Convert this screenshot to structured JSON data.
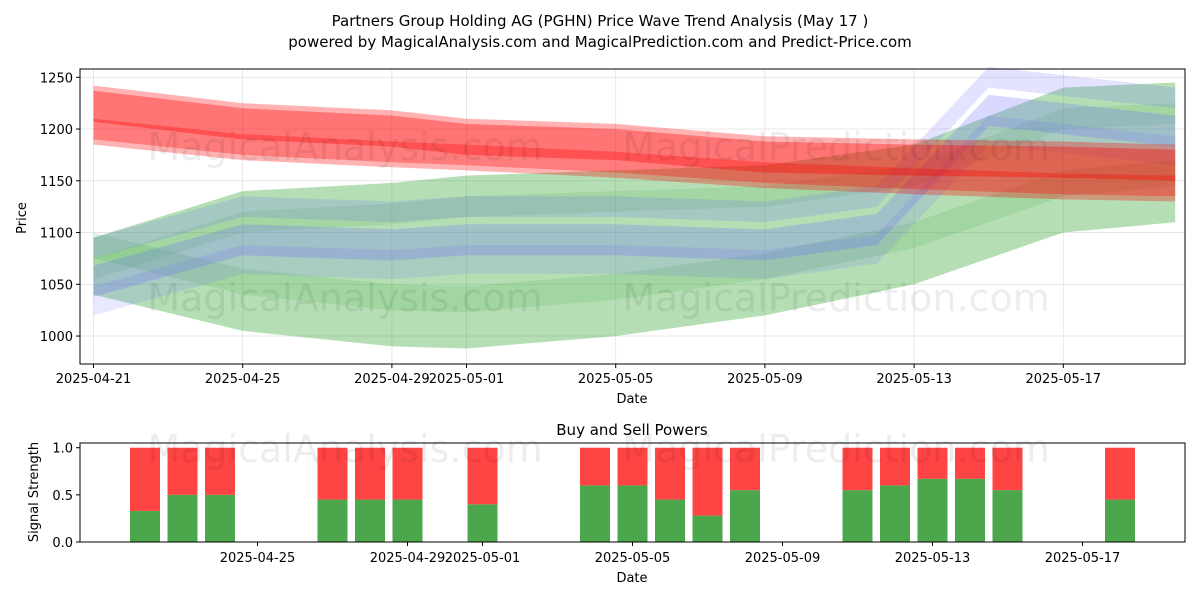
{
  "title_line1": "Partners Group Holding AG (PGHN) Price Wave Trend Analysis (May 17 )",
  "title_line2": "powered by MagicalAnalysis.com and MagicalPrediction.com and Predict-Price.com",
  "watermarks": [
    "MagicalAnalysis.com",
    "MagicalPrediction.com"
  ],
  "colors": {
    "red_band": "#ff0000",
    "green_band": "#2ca02c",
    "blue_band": "#6666ff",
    "buy": "#4ca64c",
    "sell": "#ff4444"
  },
  "chart_data": [
    {
      "type": "area",
      "title": "",
      "xlabel": "Date",
      "ylabel": "Price",
      "x_ticks": [
        "2025-04-21",
        "2025-04-25",
        "2025-04-29",
        "2025-05-01",
        "2025-05-05",
        "2025-05-09",
        "2025-05-13",
        "2025-05-17"
      ],
      "y_ticks": [
        1000,
        1050,
        1100,
        1150,
        1200,
        1250
      ],
      "xlim": [
        "2025-04-21",
        "2025-05-20"
      ],
      "ylim": [
        973,
        1258
      ],
      "grid": true,
      "series": [
        {
          "name": "red band upper",
          "color": "red",
          "points": [
            [
              "2025-04-21",
              1242
            ],
            [
              "2025-04-25",
              1225
            ],
            [
              "2025-04-29",
              1218
            ],
            [
              "2025-05-01",
              1210
            ],
            [
              "2025-05-05",
              1205
            ],
            [
              "2025-05-09",
              1193
            ],
            [
              "2025-05-13",
              1190
            ],
            [
              "2025-05-17",
              1188
            ],
            [
              "2025-05-20",
              1185
            ]
          ]
        },
        {
          "name": "red band lower",
          "color": "red",
          "points": [
            [
              "2025-04-21",
              1190
            ],
            [
              "2025-04-25",
              1175
            ],
            [
              "2025-04-29",
              1168
            ],
            [
              "2025-05-01",
              1165
            ],
            [
              "2025-05-05",
              1158
            ],
            [
              "2025-05-09",
              1148
            ],
            [
              "2025-05-13",
              1142
            ],
            [
              "2025-05-17",
              1137
            ],
            [
              "2025-05-20",
              1135
            ]
          ]
        },
        {
          "name": "green band upper",
          "color": "green",
          "points": [
            [
              "2025-04-21",
              1095
            ],
            [
              "2025-04-25",
              1140
            ],
            [
              "2025-04-29",
              1148
            ],
            [
              "2025-05-01",
              1155
            ],
            [
              "2025-05-05",
              1160
            ],
            [
              "2025-05-09",
              1165
            ],
            [
              "2025-05-13",
              1185
            ],
            [
              "2025-05-17",
              1240
            ],
            [
              "2025-05-20",
              1245
            ]
          ]
        },
        {
          "name": "green band lower",
          "color": "green",
          "points": [
            [
              "2025-04-21",
              1040
            ],
            [
              "2025-04-25",
              1005
            ],
            [
              "2025-04-29",
              990
            ],
            [
              "2025-05-01",
              988
            ],
            [
              "2025-05-05",
              1000
            ],
            [
              "2025-05-09",
              1020
            ],
            [
              "2025-05-13",
              1050
            ],
            [
              "2025-05-17",
              1100
            ],
            [
              "2025-05-20",
              1110
            ]
          ]
        },
        {
          "name": "blue band center",
          "color": "blue",
          "points": [
            [
              "2025-04-21",
              1050
            ],
            [
              "2025-04-25",
              1090
            ],
            [
              "2025-04-29",
              1085
            ],
            [
              "2025-05-01",
              1090
            ],
            [
              "2025-05-05",
              1090
            ],
            [
              "2025-05-09",
              1085
            ],
            [
              "2025-05-12",
              1100
            ],
            [
              "2025-05-15",
              1215
            ],
            [
              "2025-05-20",
              1195
            ]
          ]
        }
      ]
    },
    {
      "type": "bar",
      "title": "Buy and Sell Powers",
      "xlabel": "Date",
      "ylabel": "Signal Strength",
      "x_ticks": [
        "2025-04-25",
        "2025-04-29",
        "2025-05-01",
        "2025-05-05",
        "2025-05-09",
        "2025-05-13",
        "2025-05-17"
      ],
      "y_ticks": [
        "0.0",
        "0.5",
        "1.0"
      ],
      "ylim": [
        0,
        1.05
      ],
      "categories": [
        "2025-04-22",
        "2025-04-23",
        "2025-04-24",
        "2025-04-27",
        "2025-04-28",
        "2025-04-29",
        "2025-05-01",
        "2025-05-04",
        "2025-05-05",
        "2025-05-06",
        "2025-05-07",
        "2025-05-08",
        "2025-05-11",
        "2025-05-12",
        "2025-05-13",
        "2025-05-14",
        "2025-05-15",
        "2025-05-18"
      ],
      "series": [
        {
          "name": "Buy",
          "values": [
            0.33,
            0.5,
            0.5,
            0.45,
            0.45,
            0.45,
            0.4,
            0.6,
            0.6,
            0.45,
            0.28,
            0.55,
            0.55,
            0.6,
            0.67,
            0.67,
            0.55,
            0.45
          ]
        },
        {
          "name": "Sell",
          "values": [
            0.67,
            0.5,
            0.5,
            0.55,
            0.55,
            0.55,
            0.6,
            0.4,
            0.4,
            0.55,
            0.72,
            0.45,
            0.45,
            0.4,
            0.33,
            0.33,
            0.45,
            0.55
          ]
        }
      ]
    }
  ]
}
